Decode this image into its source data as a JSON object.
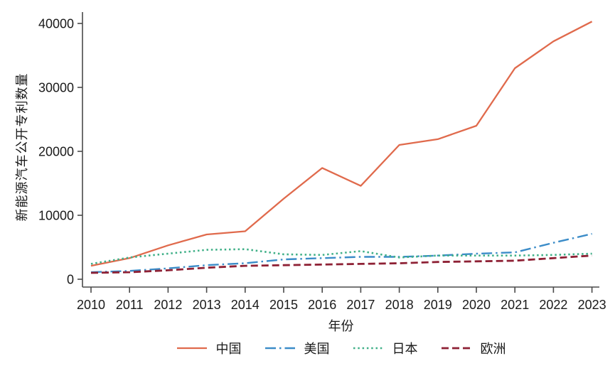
{
  "chart_data": {
    "type": "line",
    "title": "",
    "xlabel": "年份",
    "ylabel": "新能源汽车公开专利数量",
    "x": [
      2010,
      2011,
      2012,
      2013,
      2014,
      2015,
      2016,
      2017,
      2018,
      2019,
      2020,
      2021,
      2022,
      2023
    ],
    "series": [
      {
        "name": "中国",
        "color": "#e06a4c",
        "linestyle": "solid",
        "values": [
          2100,
          3300,
          5300,
          7000,
          7500,
          12600,
          17400,
          14600,
          21000,
          21900,
          24000,
          33000,
          37200,
          40300
        ]
      },
      {
        "name": "美国",
        "color": "#3b8cc8",
        "linestyle": "dashdot",
        "values": [
          1100,
          1300,
          1700,
          2200,
          2500,
          3100,
          3300,
          3500,
          3500,
          3700,
          4000,
          4200,
          5700,
          7100
        ]
      },
      {
        "name": "日本",
        "color": "#40b088",
        "linestyle": "dotted",
        "values": [
          2400,
          3400,
          4000,
          4600,
          4700,
          3900,
          3800,
          4400,
          3400,
          3700,
          3700,
          3700,
          3800,
          4000
        ]
      },
      {
        "name": "欧洲",
        "color": "#8e2135",
        "linestyle": "dashed",
        "values": [
          1000,
          1100,
          1400,
          1800,
          2100,
          2200,
          2300,
          2400,
          2500,
          2700,
          2800,
          2900,
          3300,
          3700
        ]
      }
    ],
    "ylim": [
      0,
      40000
    ],
    "yticks": [
      0,
      10000,
      20000,
      30000,
      40000
    ],
    "grid": false,
    "legend_position": "bottom"
  }
}
